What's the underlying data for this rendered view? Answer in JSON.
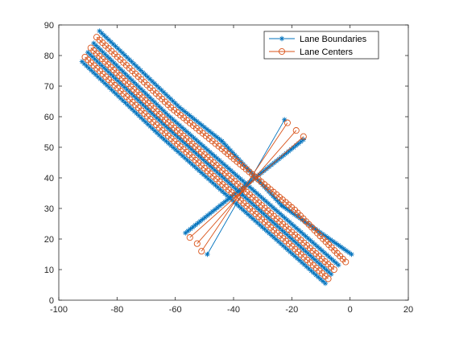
{
  "colors": {
    "boundary": "#0072BD",
    "center": "#D95319",
    "axis": "#262626",
    "background": "#ffffff"
  },
  "legend": {
    "placement": "top-right",
    "items": [
      {
        "label": "Lane Boundaries",
        "series": "boundaries",
        "marker": "asterisk"
      },
      {
        "label": "Lane Centers",
        "series": "centers",
        "marker": "circle"
      }
    ]
  },
  "chart_data": {
    "type": "line",
    "title": "",
    "xlabel": "",
    "ylabel": "",
    "xlim": [
      -100,
      20
    ],
    "ylim": [
      0,
      90
    ],
    "xticks": [
      -100,
      -80,
      -60,
      -40,
      -20,
      0,
      20
    ],
    "yticks": [
      0,
      10,
      20,
      30,
      40,
      50,
      60,
      70,
      80,
      90
    ],
    "grid": false,
    "series": [
      {
        "name": "Lane Boundaries",
        "marker": "asterisk",
        "lines": [
          [
            [
              -92,
              78
            ],
            [
              -65.5,
              54
            ],
            [
              -8.5,
              5.5
            ]
          ],
          [
            [
              -90,
              81
            ],
            [
              -64,
              57.5
            ],
            [
              -6.5,
              8.5
            ]
          ],
          [
            [
              -88,
              84
            ],
            [
              -62.5,
              60.5
            ],
            [
              -4,
              11.5
            ]
          ],
          [
            [
              -86,
              88
            ],
            [
              -58.5,
              63
            ],
            [
              -44,
              52
            ]
          ],
          [
            [
              -23.5,
              31
            ],
            [
              0.5,
              15
            ]
          ],
          [
            [
              -22.5,
              59
            ],
            [
              -49,
              15
            ]
          ],
          [
            [
              -16,
              52.5
            ],
            [
              -56.5,
              22
            ]
          ],
          [
            [
              -44,
              52
            ],
            [
              -23.5,
              31
            ]
          ]
        ]
      },
      {
        "name": "Lane Centers",
        "marker": "circle",
        "lines": [
          [
            [
              -91,
              79.5
            ],
            [
              -64.5,
              55.5
            ],
            [
              -7.5,
              7
            ]
          ],
          [
            [
              -89,
              82.5
            ],
            [
              -63.5,
              59
            ],
            [
              -5.5,
              10
            ]
          ],
          [
            [
              -87,
              86
            ],
            [
              -61.5,
              63
            ],
            [
              -44,
              49.5
            ],
            [
              -19,
              29.5
            ],
            [
              -1.5,
              12.5
            ]
          ],
          [
            [
              -21.5,
              58
            ],
            [
              -51,
              16
            ]
          ],
          [
            [
              -18.5,
              55.5
            ],
            [
              -52.5,
              18.5
            ]
          ],
          [
            [
              -16,
              53.5
            ],
            [
              -55,
              20.5
            ]
          ]
        ]
      }
    ]
  }
}
